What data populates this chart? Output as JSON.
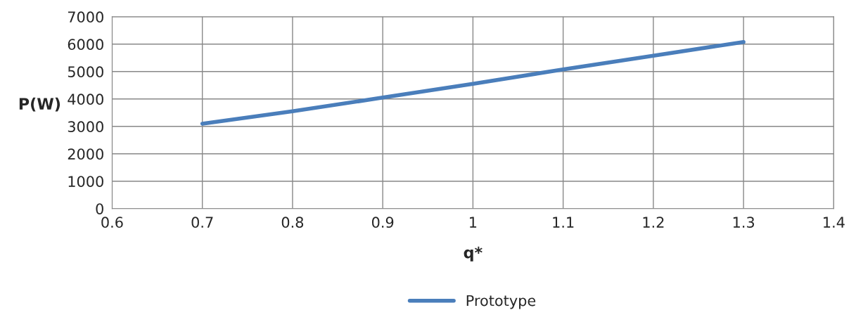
{
  "chart_data": {
    "type": "line",
    "xlabel": "q*",
    "ylabel": "P(W)",
    "x": [
      0.7,
      0.8,
      0.9,
      1.0,
      1.1,
      1.2,
      1.3
    ],
    "series": [
      {
        "name": "Prototype",
        "color": "#4a7ebb",
        "values": [
          3100,
          3550,
          4050,
          4550,
          5080,
          5580,
          6080
        ]
      }
    ],
    "xlim": [
      0.6,
      1.4
    ],
    "xticks": [
      0.6,
      0.7,
      0.8,
      0.9,
      1,
      1.1,
      1.2,
      1.3,
      1.4
    ],
    "ylim": [
      0,
      7000
    ],
    "yticks": [
      0,
      1000,
      2000,
      3000,
      4000,
      5000,
      6000,
      7000
    ],
    "grid": true,
    "legend": "bottom",
    "marker": "none",
    "line_style": "solid"
  }
}
